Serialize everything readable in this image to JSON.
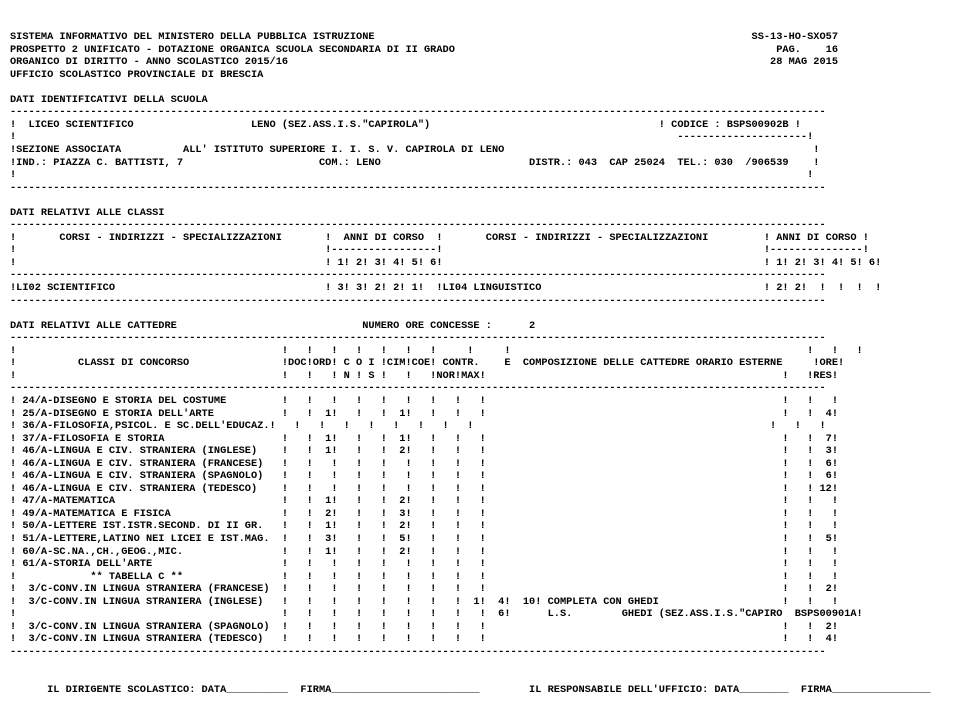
{
  "header": {
    "l1l": "SISTEMA INFORMATIVO DEL MINISTERO DELLA PUBBLICA ISTRUZIONE",
    "l1r": "SS-13-HO-SXO57",
    "l2l": "PROSPETTO 2 UNIFICATO - DOTAZIONE ORGANICA SCUOLA SECONDARIA DI II GRADO",
    "l2r": "PAG.    16",
    "l3l": "ORGANICO DI DIRITTO - ANNO SCOLASTICO 2015/16",
    "l3r": "28 MAG 2015",
    "l4": "UFFICIO SCOLASTICO PROVINCIALE DI BRESCIA"
  },
  "ident_title": "DATI IDENTIFICATIVI DELLA SCUOLA",
  "ident": {
    "school": "!  LICEO SCIENTIFICO                   LENO (SEZ.ASS.I.S.\"CAPIROLA\")                                     ! CODICE : BSPS00902B !",
    "sez1": "!SEZIONE ASSOCIATA          ALL' ISTITUTO SUPERIORE I. I. S. V. CAPIROLA DI LENO                                                  !",
    "sez2": "!IND.: PIAZZA C. BATTISTI, 7                      COM.: LENO                        DISTR.: 043  CAP 25024  TEL.: 030  /906539    !"
  },
  "classi_title": "DATI RELATIVI ALLE CLASSI",
  "classi": {
    "hdr1": "!       CORSI - INDIRIZZI - SPECIALIZZAZIONI       !  ANNI DI CORSO  !       CORSI - INDIRIZZI - SPECIALIZZAZIONI         ! ANNI DI CORSO !",
    "hdr2": "!                                                  !-----------------!                                                    !---------------!",
    "hdr3": "!                                                  ! 1! 2! 3! 4! 5! 6!                                                    ! 1! 2! 3! 4! 5! 6!",
    "row1": "!LI02 SCIENTIFICO                                  ! 3! 3! 2! 2! 1!  !LI04 LINGUISTICO                                    ! 2! 2!  !  !  !  !"
  },
  "catt_title": "DATI RELATIVI ALLE CATTEDRE                              NUMERO ORE CONCESSE :      2",
  "catt_hdr": {
    "h1": "!                                           !   !   !   !   !   !   !     !     !                                                !   !   !",
    "h2": "!          CLASSI DI CONCORSO               !DOC!ORD! C O I !CIM!COE! CONTR.    E  COMPOSIZIONE DELLE CATTEDRE ORARIO ESTERNE     !ORE!",
    "h3": "!                                           !   !   ! N ! S !   !   !NOR!MAX!                                                !   !RES!"
  },
  "rows": [
    "! 24/A-DISEGNO E STORIA DEL COSTUME         !   !   !   !   !   !   !   !   !                                                !   !   !",
    "! 25/A-DISEGNO E STORIA DELL'ARTE           !   !  1!   !   !  1!   !   !   !                                                !   !  4!",
    "! 36/A-FILOSOFIA,PSICOL. E SC.DELL'EDUCAZ.!   !   !   !   !   !   !   !   !                                                !   !   !",
    "! 37/A-FILOSOFIA E STORIA                   !   !  1!   !   !  1!   !   !   !                                                !   !  7!",
    "! 46/A-LINGUA E CIV. STRANIERA (INGLESE)    !   !  1!   !   !  2!   !   !   !                                                !   !  3!",
    "! 46/A-LINGUA E CIV. STRANIERA (FRANCESE)   !   !   !   !   !   !   !   !   !                                                !   !  6!",
    "! 46/A-LINGUA E CIV. STRANIERA (SPAGNOLO)   !   !   !   !   !   !   !   !   !                                                !   !  6!",
    "! 46/A-LINGUA E CIV. STRANIERA (TEDESCO)    !   !   !   !   !   !   !   !   !                                                !   ! 12!",
    "! 47/A-MATEMATICA                           !   !  1!   !   !  2!   !   !   !                                                !   !   !",
    "! 49/A-MATEMATICA E FISICA                  !   !  2!   !   !  3!   !   !   !                                                !   !   !",
    "! 50/A-LETTERE IST.ISTR.SECOND. DI II GR.   !   !  1!   !   !  2!   !   !   !                                                !   !   !",
    "! 51/A-LETTERE,LATINO NEI LICEI E IST.MAG.  !   !  3!   !   !  5!   !   !   !                                                !   !  5!",
    "! 60/A-SC.NA.,CH.,GEOG.,MIC.                !   !  1!   !   !  2!   !   !   !                                                !   !   !",
    "! 61/A-STORIA DELL'ARTE                     !   !   !   !   !   !   !   !   !                                                !   !   !",
    "!            ** TABELLA C **                !   !   !   !   !   !   !   !   !                                                !   !   !",
    "!  3/C-CONV.IN LINGUA STRANIERA (FRANCESE)  !   !   !   !   !   !   !   !   !                                                !   !  2!",
    "!  3/C-CONV.IN LINGUA STRANIERA (INGLESE)   !   !   !   !   !   !   !   !  1!  4!  10! COMPLETA CON GHEDI                    !   !   !",
    "!                                           !   !   !   !   !   !   !   !   !  6!      L.S.        GHEDI (SEZ.ASS.I.S.\"CAPIRO  BSPS00901A!",
    "!  3/C-CONV.IN LINGUA STRANIERA (SPAGNOLO)  !   !   !   !   !   !   !   !   !                                                !   !  2!",
    "!  3/C-CONV.IN LINGUA STRANIERA (TEDESCO)   !   !   !   !   !   !   !   !   !                                                !   !  4!"
  ],
  "footer": "      IL DIRIGENTE SCOLASTICO: DATA__________  FIRMA________________________        IL RESPONSABILE DELL'UFFICIO: DATA________  FIRMA________________",
  "style": {
    "rule_char": "-",
    "rule_len": 132
  }
}
